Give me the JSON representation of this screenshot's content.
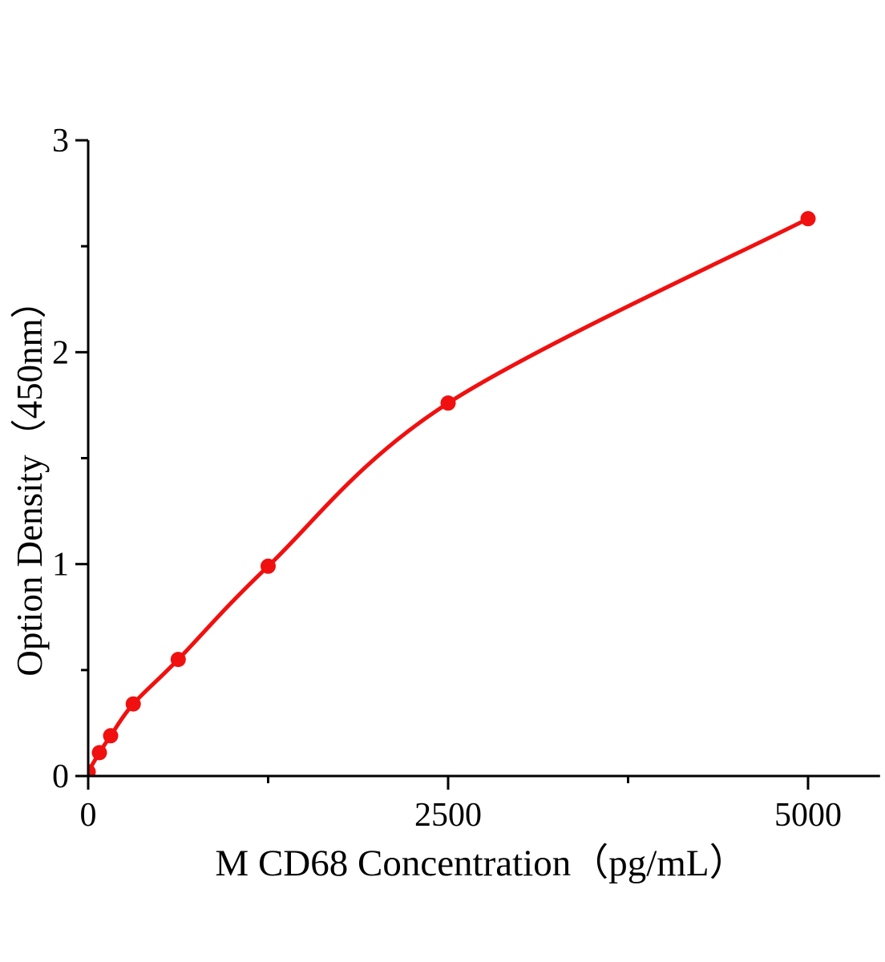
{
  "colors": {
    "curve": "#f01010",
    "axis": "#000000",
    "background": "#ffffff"
  },
  "chart_data": {
    "type": "scatter",
    "curve_style": "smooth-fit-line",
    "title": "",
    "xlabel": "M CD68 Concentration（pg/mL）",
    "ylabel": "Option Density（450nm）",
    "x": [
      0,
      78,
      156,
      313,
      625,
      1250,
      2500,
      5000
    ],
    "y": [
      0.02,
      0.11,
      0.19,
      0.34,
      0.55,
      0.99,
      1.76,
      2.63
    ],
    "xlim": [
      0,
      5500
    ],
    "ylim": [
      0,
      3
    ],
    "x_major_ticks": [
      0,
      2500,
      5000
    ],
    "x_tick_labels": [
      "0",
      "2500",
      "5000"
    ],
    "x_minor_ticks": [
      1250,
      3750
    ],
    "y_major_ticks": [
      0,
      1,
      2,
      3
    ],
    "y_tick_labels": [
      "0",
      "1",
      "2",
      "3"
    ],
    "y_minor_ticks": [
      0.5,
      1.5,
      2.5
    ],
    "grid": false,
    "legend": "none",
    "marker": "filled-circle"
  }
}
